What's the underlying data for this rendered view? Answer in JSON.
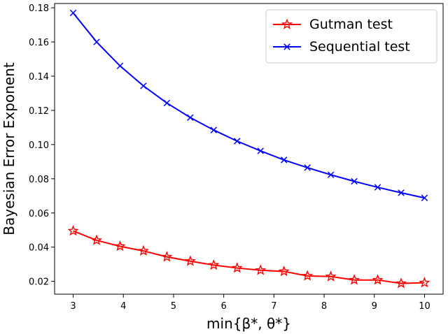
{
  "chart_data": {
    "type": "line",
    "xlabel": "min{β*, θ*}",
    "ylabel": "Bayesian Error Exponent",
    "xlim": [
      2.63,
      10.37
    ],
    "ylim": [
      0.0125,
      0.1825
    ],
    "x_ticks": [
      3,
      4,
      5,
      6,
      7,
      8,
      9,
      10
    ],
    "y_ticks": [
      0.02,
      0.04,
      0.06,
      0.08,
      0.1,
      0.12,
      0.14,
      0.16,
      0.18
    ],
    "y_tick_labels": [
      "0.02",
      "0.04",
      "0.06",
      "0.08",
      "0.10",
      "0.12",
      "0.14",
      "0.16",
      "0.18"
    ],
    "grid": false,
    "legend_position": "top-right",
    "x": [
      3.0,
      3.4667,
      3.9333,
      4.4,
      4.8667,
      5.3333,
      5.8,
      6.2667,
      6.7333,
      7.2,
      7.6667,
      8.1333,
      8.6,
      9.0667,
      9.5333,
      10.0
    ],
    "series": [
      {
        "name": "Gutman test",
        "color": "#ff0000",
        "marker": "star",
        "values": [
          0.0495,
          0.044,
          0.0405,
          0.0378,
          0.0343,
          0.0318,
          0.0295,
          0.0278,
          0.0265,
          0.0258,
          0.0232,
          0.0228,
          0.0208,
          0.0208,
          0.0188,
          0.0192
        ]
      },
      {
        "name": "Sequential test",
        "color": "#0000ff",
        "marker": "x",
        "values": [
          0.177,
          0.16,
          0.146,
          0.1343,
          0.1243,
          0.1158,
          0.1085,
          0.102,
          0.0963,
          0.091,
          0.0865,
          0.0823,
          0.0785,
          0.075,
          0.0718,
          0.0688
        ]
      }
    ]
  }
}
